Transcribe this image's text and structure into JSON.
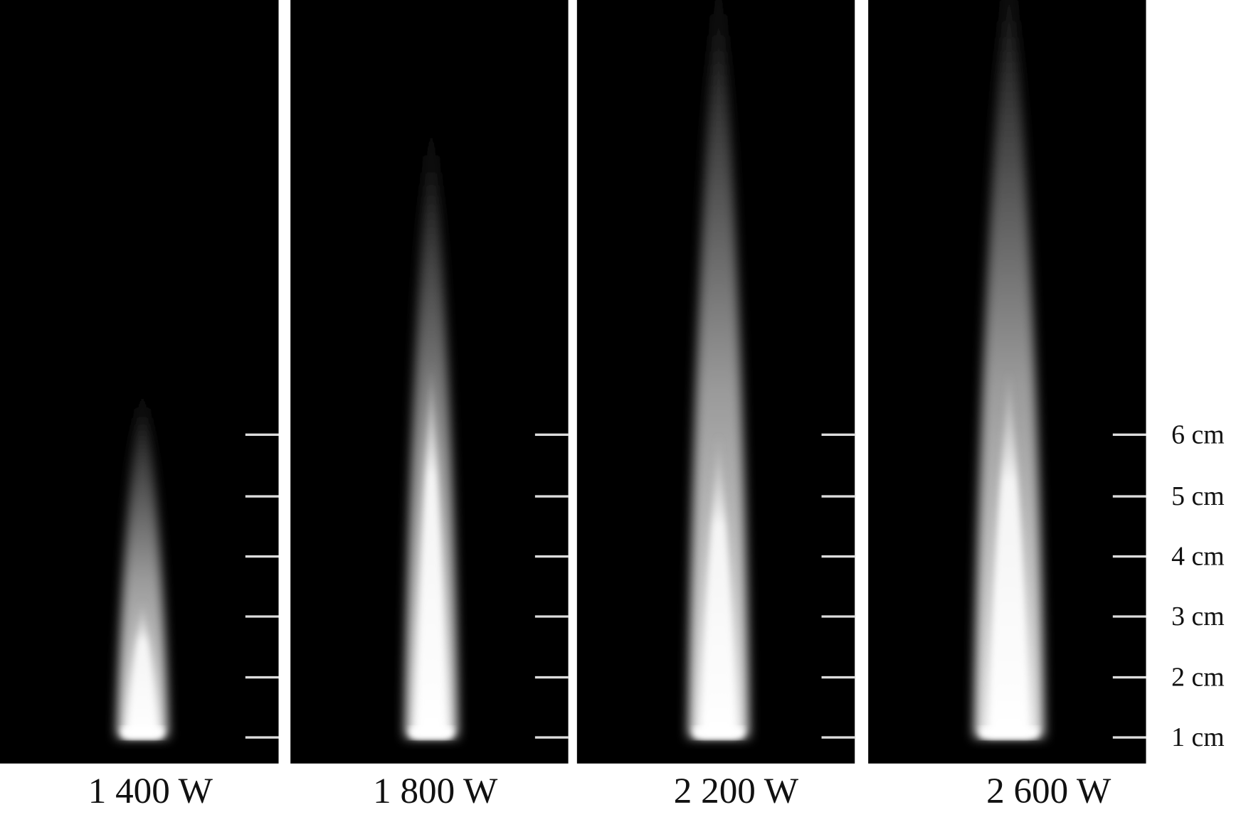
{
  "panels": [
    {
      "label": "1 400 W"
    },
    {
      "label": "1 800 W"
    },
    {
      "label": "2 200 W"
    },
    {
      "label": "2 600 W"
    }
  ],
  "scale": {
    "ticks": [
      "1 cm",
      "2 cm",
      "3 cm",
      "4 cm",
      "5 cm",
      "6 cm"
    ]
  }
}
